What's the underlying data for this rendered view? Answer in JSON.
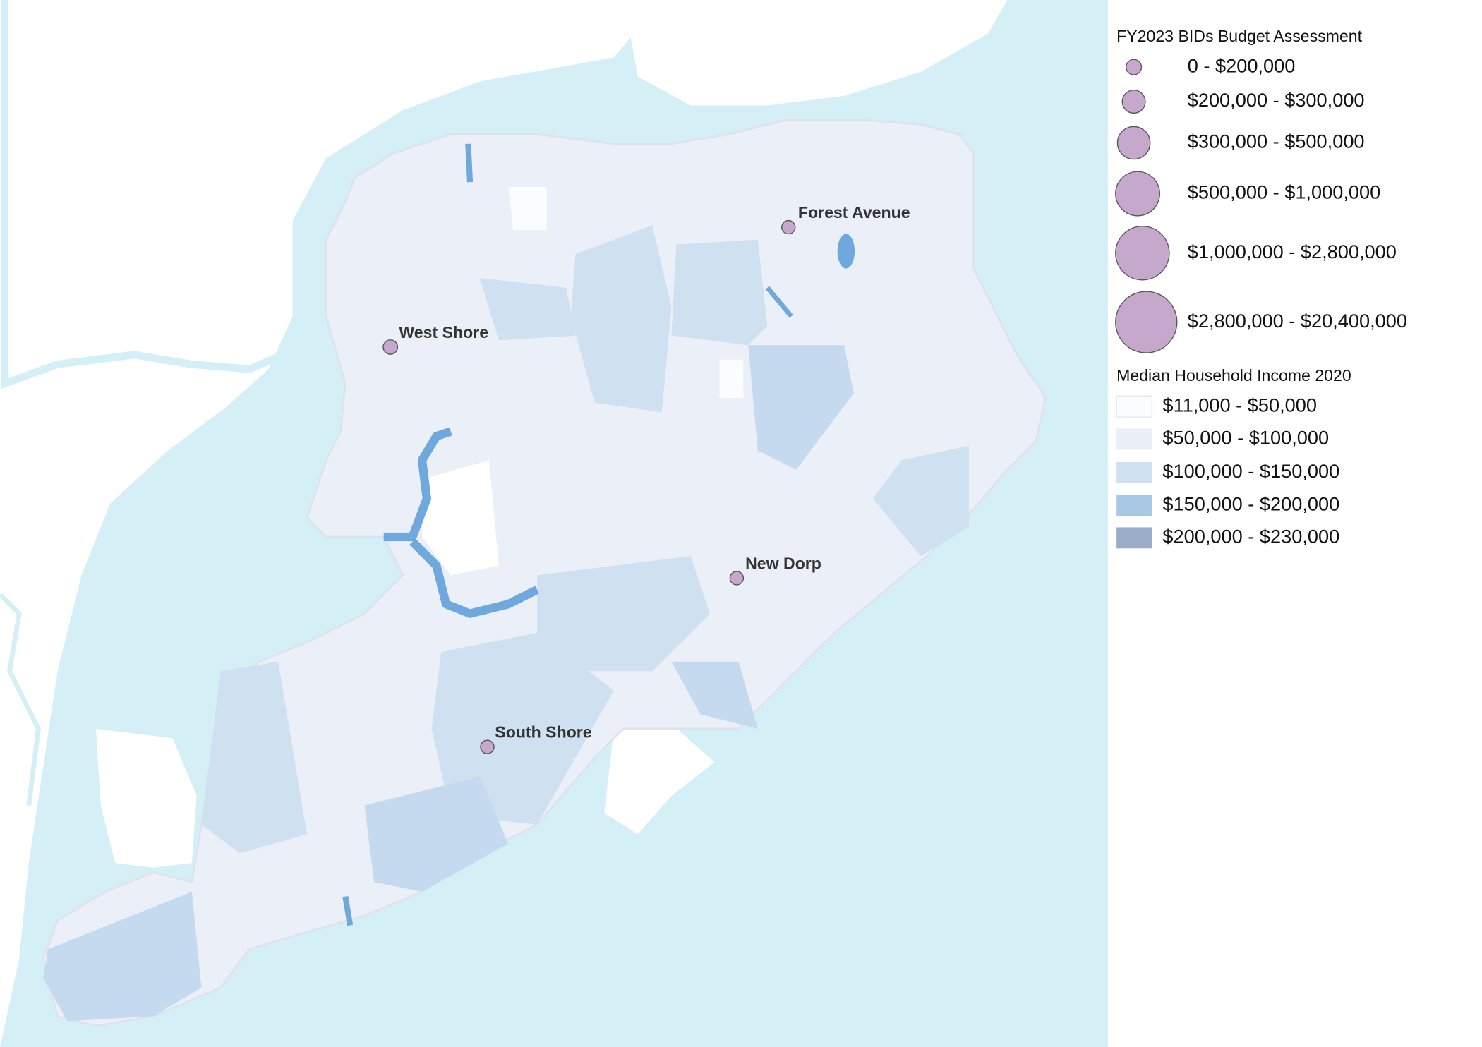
{
  "map": {
    "places": [
      "Forest Avenue",
      "West Shore",
      "New Dorp",
      "South Shore"
    ]
  },
  "legend": {
    "budget": {
      "title": "FY2023 BIDs Budget Assessment",
      "items": [
        "0 - $200,000",
        "$200,000 - $300,000",
        "$300,000 - $500,000",
        "$500,000 - $1,000,000",
        "$1,000,000 - $2,800,000",
        "$2,800,000 - $20,400,000"
      ]
    },
    "income": {
      "title": "Median Household Income 2020",
      "items": [
        "$11,000 - $50,000",
        "$50,000 - $100,000",
        "$100,000 - $150,000",
        "$150,000 - $200,000",
        "$200,000 - $230,000"
      ]
    }
  }
}
